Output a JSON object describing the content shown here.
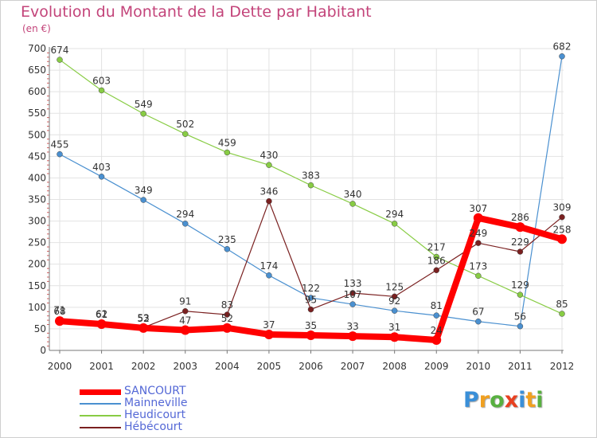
{
  "chart_data": {
    "type": "line",
    "title": "Evolution du Montant de la Dette par Habitant",
    "subtitle": "(en €)",
    "x": [
      "2000",
      "2001",
      "2002",
      "2003",
      "2004",
      "2005",
      "2006",
      "2007",
      "2008",
      "2009",
      "2010",
      "2011",
      "2012"
    ],
    "ylim": [
      0,
      700
    ],
    "yticks": [
      "0",
      "50",
      "100",
      "150",
      "200",
      "250",
      "300",
      "350",
      "400",
      "450",
      "500",
      "550",
      "600",
      "650",
      "700"
    ],
    "grid": true,
    "legend_position": "bottom-left",
    "series": [
      {
        "name": "SANCOURT",
        "color": "#ff0000",
        "values": [
          68,
          61,
          52,
          47,
          52,
          37,
          35,
          33,
          31,
          24,
          307,
          286,
          258
        ],
        "labels": [
          "68",
          "61",
          "52",
          "47",
          "52",
          "37",
          "35",
          "33",
          "31",
          "24",
          "307",
          "286",
          "258"
        ]
      },
      {
        "name": "Mainneville",
        "color": "#4a90d0",
        "values": [
          455,
          403,
          349,
          294,
          235,
          174,
          122,
          107,
          92,
          81,
          67,
          56,
          682
        ],
        "labels": [
          "455",
          "403",
          "349",
          "294",
          "235",
          "174",
          "122",
          "107",
          "92",
          "81",
          "67",
          "56",
          "682"
        ]
      },
      {
        "name": "Heudicourt",
        "color": "#88cc44",
        "values": [
          674,
          603,
          549,
          502,
          459,
          430,
          383,
          340,
          294,
          217,
          173,
          129,
          85
        ],
        "labels": [
          "674",
          "603",
          "549",
          "502",
          "459",
          "430",
          "383",
          "340",
          "294",
          "217",
          "173",
          "129",
          "85"
        ]
      },
      {
        "name": "Hébécourt",
        "color": "#7a2020",
        "values": [
          71,
          62,
          53,
          91,
          83,
          346,
          95,
          133,
          125,
          186,
          249,
          229,
          309
        ],
        "labels": [
          "71",
          "62",
          "53",
          "91",
          "83",
          "346",
          "95",
          "133",
          "125",
          "186",
          "249",
          "229",
          "309"
        ]
      }
    ]
  },
  "logo": {
    "letters": [
      {
        "ch": "P",
        "color": "#3a8fd8"
      },
      {
        "ch": "r",
        "color": "#f0a020"
      },
      {
        "ch": "o",
        "color": "#58b040"
      },
      {
        "ch": "x",
        "color": "#e84020"
      },
      {
        "ch": "i",
        "color": "#3a8fd8"
      },
      {
        "ch": "t",
        "color": "#f0a020"
      },
      {
        "ch": "i",
        "color": "#58b040"
      }
    ]
  }
}
